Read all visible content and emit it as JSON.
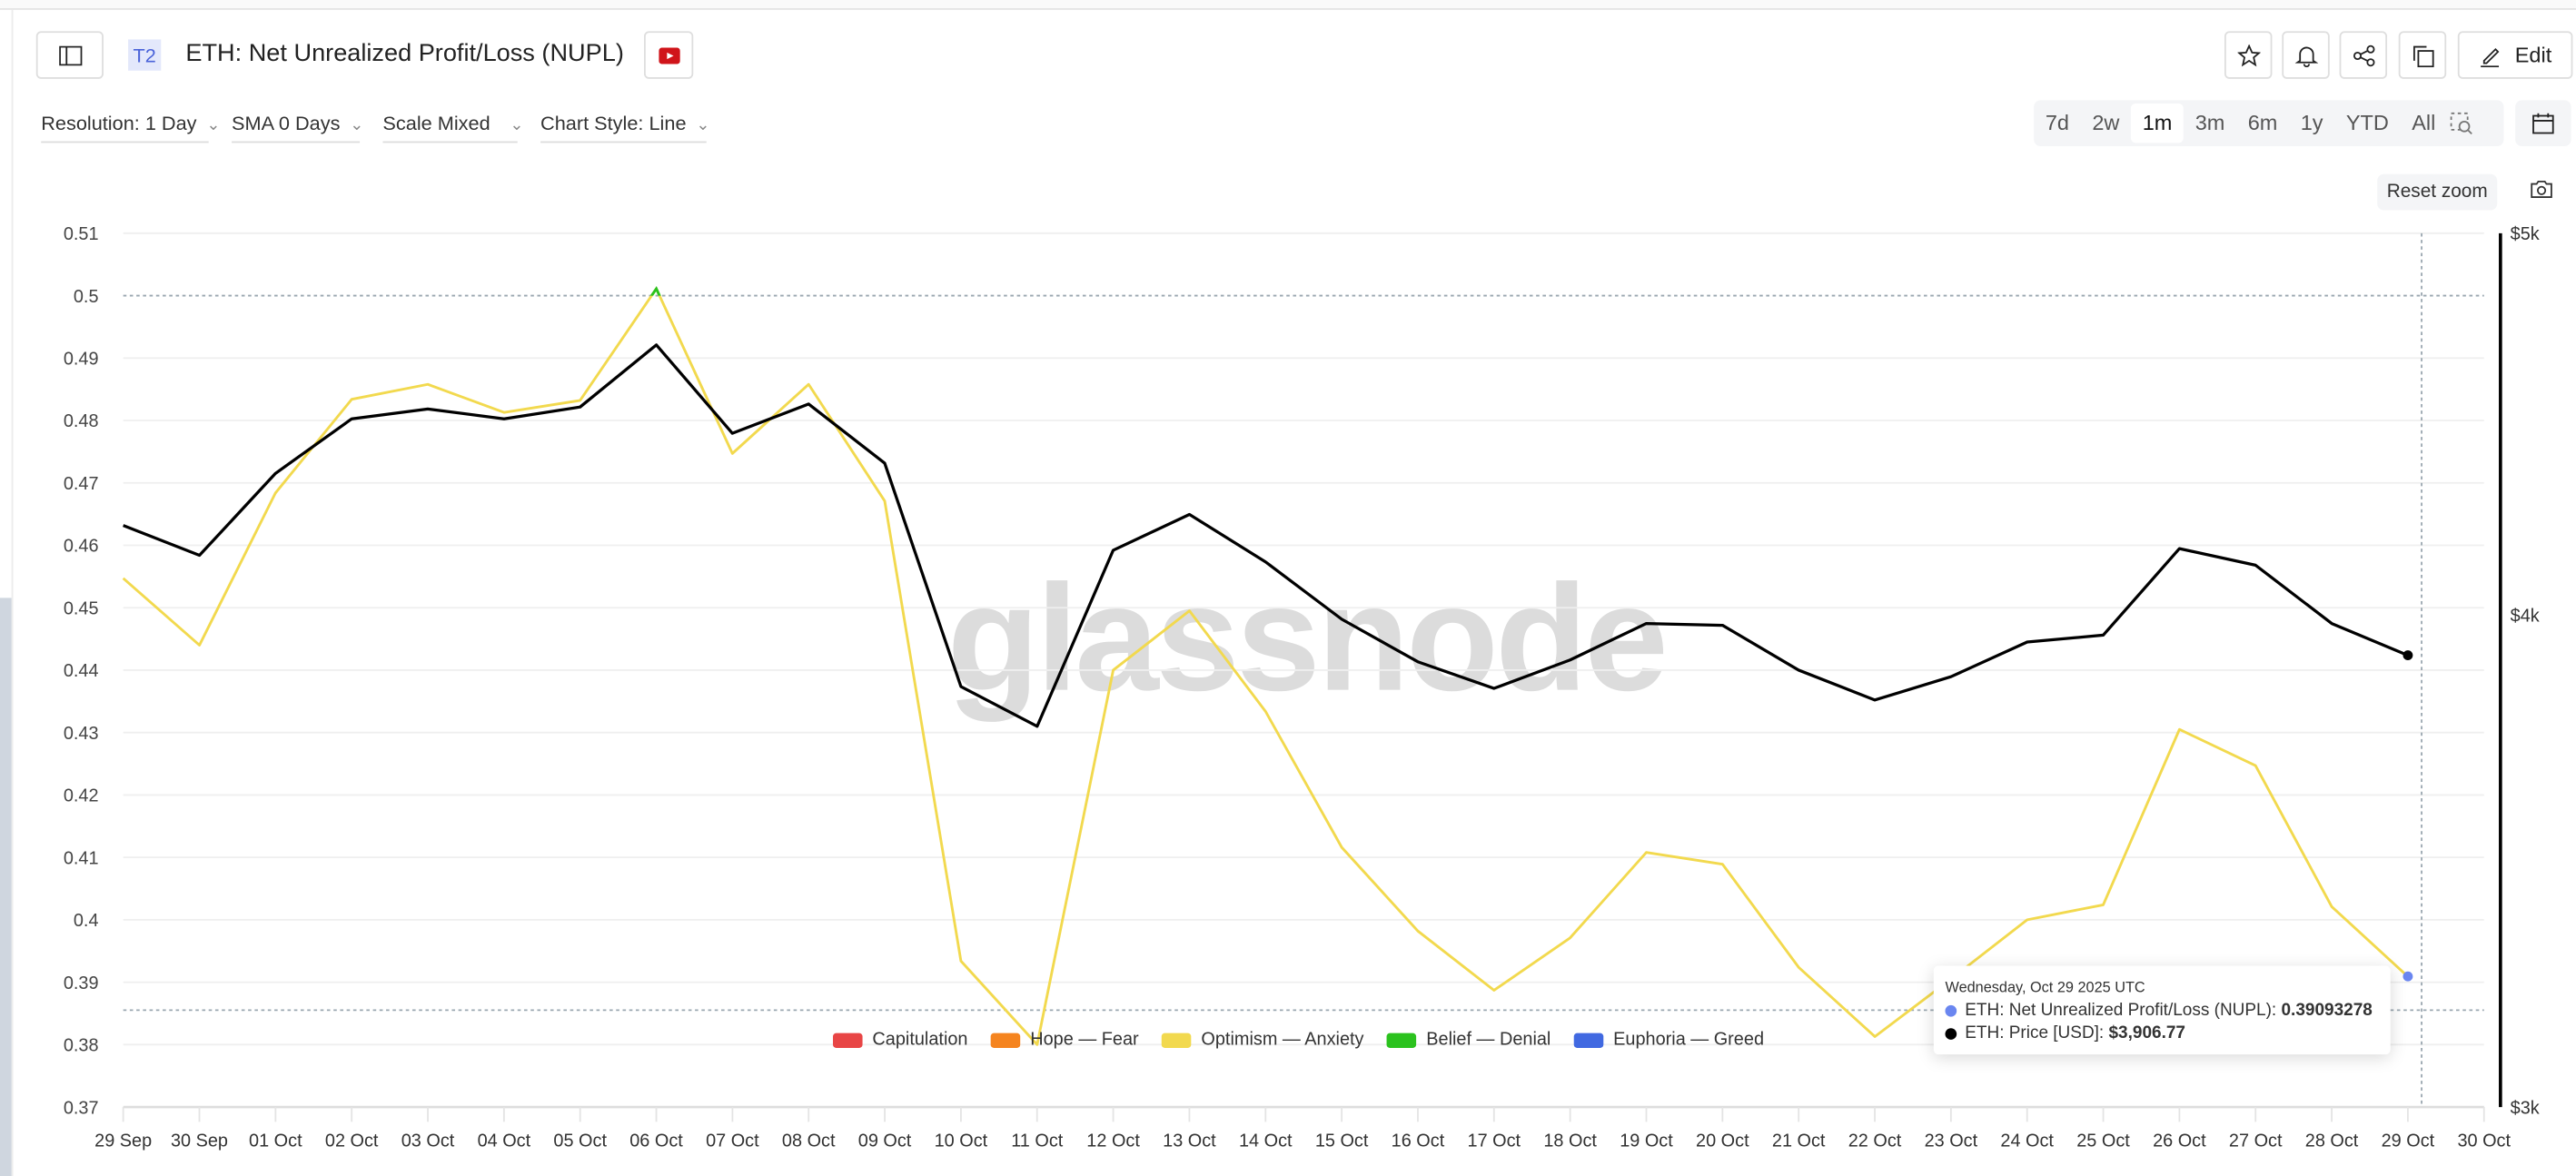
{
  "header": {
    "tier_badge": "T2",
    "title": "ETH: Net Unrealized Profit/Loss (NUPL)",
    "edit_label": "Edit"
  },
  "controls": {
    "resolution": "Resolution: 1 Day",
    "sma": "SMA 0 Days",
    "scale": "Scale Mixed",
    "chart_style": "Chart Style: Line",
    "ranges": [
      "7d",
      "2w",
      "1m",
      "3m",
      "6m",
      "1y",
      "YTD",
      "All"
    ],
    "active_range": "1m",
    "reset_zoom": "Reset zoom"
  },
  "watermark": "glassnode",
  "tooltip": {
    "date": "Wednesday, Oct 29 2025 UTC",
    "nupl_label": "ETH: Net Unrealized Profit/Loss (NUPL): ",
    "nupl_value": "0.39093278",
    "price_label": "ETH: Price [USD]: ",
    "price_value": "$3,906.77"
  },
  "chart_data": {
    "type": "line",
    "title": "ETH: Net Unrealized Profit/Loss (NUPL)",
    "x": [
      "29 Sep",
      "30 Sep",
      "01 Oct",
      "02 Oct",
      "03 Oct",
      "04 Oct",
      "05 Oct",
      "06 Oct",
      "07 Oct",
      "08 Oct",
      "09 Oct",
      "10 Oct",
      "11 Oct",
      "12 Oct",
      "13 Oct",
      "14 Oct",
      "15 Oct",
      "16 Oct",
      "17 Oct",
      "18 Oct",
      "19 Oct",
      "20 Oct",
      "21 Oct",
      "22 Oct",
      "23 Oct",
      "24 Oct",
      "25 Oct",
      "26 Oct",
      "27 Oct",
      "28 Oct",
      "29 Oct"
    ],
    "x_ticks": [
      "29 Sep",
      "30 Sep",
      "01 Oct",
      "02 Oct",
      "03 Oct",
      "04 Oct",
      "05 Oct",
      "06 Oct",
      "07 Oct",
      "08 Oct",
      "09 Oct",
      "10 Oct",
      "11 Oct",
      "12 Oct",
      "13 Oct",
      "14 Oct",
      "15 Oct",
      "16 Oct",
      "17 Oct",
      "18 Oct",
      "19 Oct",
      "20 Oct",
      "21 Oct",
      "22 Oct",
      "23 Oct",
      "24 Oct",
      "25 Oct",
      "26 Oct",
      "27 Oct",
      "28 Oct",
      "29 Oct",
      "30 Oct"
    ],
    "y_left": {
      "ticks": [
        "0.51",
        "0.5",
        "0.49",
        "0.48",
        "0.47",
        "0.46",
        "0.45",
        "0.44",
        "0.43",
        "0.42",
        "0.41",
        "0.4",
        "0.39",
        "0.38",
        "0.37"
      ],
      "range": [
        0.37,
        0.51
      ]
    },
    "y_right": {
      "ticks": [
        "$5k",
        "$4k",
        "$3k"
      ],
      "tick_values": [
        5000,
        4000,
        3000
      ],
      "range": [
        3000,
        5000
      ],
      "scale": "log"
    },
    "grid": true,
    "series": [
      {
        "name": "ETH: Net Unrealized Profit/Loss (NUPL)",
        "axis": "left",
        "color": "#f2d94e",
        "values": [
          0.4547,
          0.444,
          0.4684,
          0.4834,
          0.4858,
          0.4813,
          0.4832,
          0.5011,
          0.4747,
          0.4858,
          0.4671,
          0.3934,
          0.38,
          0.44,
          0.4495,
          0.4334,
          0.4116,
          0.3982,
          0.3887,
          0.3971,
          0.4108,
          0.4089,
          0.3924,
          0.3813,
          0.3905,
          0.4,
          0.4024,
          0.4305,
          0.4247,
          0.4021,
          0.39093278
        ]
      },
      {
        "name": "ETH: Price [USD]",
        "axis": "right",
        "color": "#000000",
        "values": [
          4215,
          4142,
          4345,
          4486,
          4512,
          4486,
          4517,
          4684,
          4448,
          4525,
          4371,
          3836,
          3748,
          4154,
          4242,
          4126,
          3990,
          3892,
          3832,
          3896,
          3980,
          3976,
          3873,
          3806,
          3858,
          3937,
          3953,
          4158,
          4118,
          3980,
          3906.77
        ]
      }
    ],
    "zones": [
      {
        "name": "Capitulation",
        "color": "#e84545"
      },
      {
        "name": "Hope — Fear",
        "color": "#f5841f"
      },
      {
        "name": "Optimism — Anxiety",
        "color": "#f2d94e"
      },
      {
        "name": "Belief — Denial",
        "color": "#2bc21e"
      },
      {
        "name": "Euphoria — Greed",
        "color": "#4169e1"
      }
    ],
    "zone_threshold_belief": 0.5,
    "legend_position": "bottom-center"
  }
}
